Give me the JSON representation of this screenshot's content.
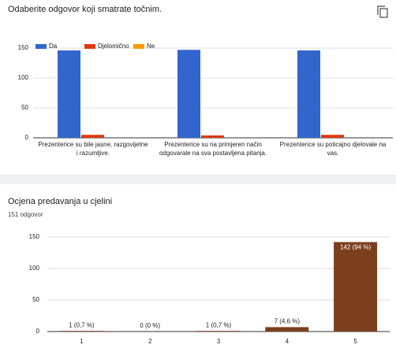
{
  "chart_data": [
    {
      "type": "bar",
      "title": "Odaberite odgovor koji smatrate točnim.",
      "categories": [
        "Prezenterice su bile jasne, razgovijetne i razumljive.",
        "Prezenterice su na primjeren način odgovarale na sva postavljena pitanja.",
        "Prezenterice su poticajno djelovale na vas."
      ],
      "series": [
        {
          "name": "Da",
          "color": "#3366cc",
          "values": [
            146,
            147,
            146
          ]
        },
        {
          "name": "Djelomično",
          "color": "#dc3912",
          "values": [
            5,
            4,
            5
          ]
        },
        {
          "name": "Ne",
          "color": "#ff9900",
          "values": [
            0,
            0,
            0
          ]
        }
      ],
      "ylim": [
        0,
        150
      ],
      "yticks": [
        0,
        50,
        100,
        150
      ],
      "grid": true,
      "legend": "top"
    },
    {
      "type": "bar",
      "title": "Ocjena predavanja u cjelini",
      "subtitle": "151 odgovor",
      "categories": [
        "1",
        "2",
        "3",
        "4",
        "5"
      ],
      "values": [
        1,
        0,
        1,
        7,
        142
      ],
      "value_labels": [
        "1 (0,7 %)",
        "0 (0 %)",
        "1 (0,7 %)",
        "7 (4,6 %)",
        "142 (94 %)"
      ],
      "color": "#7b3f1e",
      "ylim": [
        0,
        150
      ],
      "yticks": [
        0,
        50,
        100,
        150
      ],
      "grid": true
    }
  ]
}
